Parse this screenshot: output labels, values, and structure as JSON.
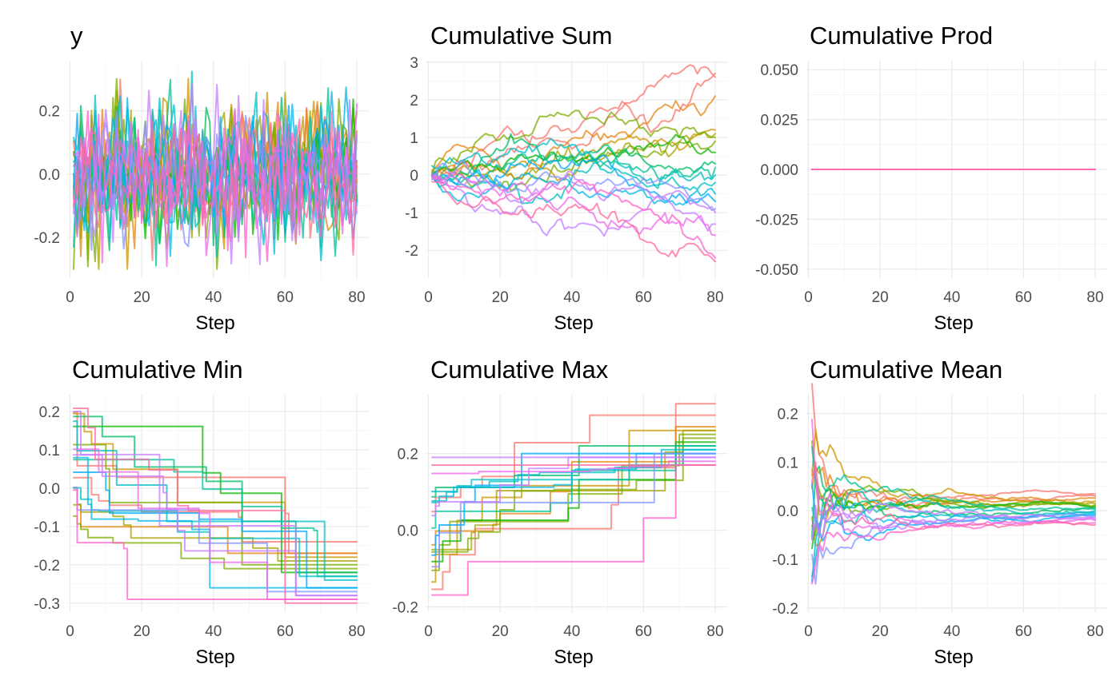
{
  "figure": {
    "palette": [
      "#F8766D",
      "#E68613",
      "#CD9600",
      "#ABA300",
      "#7CAE00",
      "#0CB702",
      "#00BE67",
      "#00C19A",
      "#00BFC4",
      "#00B8E7",
      "#00A9FF",
      "#8494FF",
      "#C77CFF",
      "#ED68ED",
      "#FF61CC",
      "#FF68A1"
    ]
  },
  "chart_data": [
    {
      "key": "y",
      "type": "line",
      "title": "y",
      "xlabel": "Step",
      "ylabel": "",
      "xlim": [
        1,
        80
      ],
      "ylim": [
        -0.3,
        0.33
      ],
      "xticks": [
        0,
        20,
        40,
        60,
        80
      ],
      "yticks": [
        -0.2,
        0.0,
        0.2
      ],
      "ytick_labels": [
        "-0.2",
        "0.0",
        "0.2"
      ],
      "n_series": 20,
      "n_steps": 80,
      "value_range": [
        -0.3,
        0.33
      ]
    },
    {
      "key": "cumsum",
      "type": "line",
      "title": "Cumulative Sum",
      "xlabel": "Step",
      "ylabel": "",
      "xlim": [
        1,
        80
      ],
      "ylim": [
        -2.5,
        2.8
      ],
      "xticks": [
        0,
        20,
        40,
        60,
        80
      ],
      "yticks": [
        -2,
        -1,
        0,
        1,
        2,
        3
      ],
      "ytick_labels": [
        "-2",
        "-1",
        "0",
        "1",
        "2",
        "3"
      ],
      "n_series": 20,
      "final_values": [
        2.7,
        2.6,
        2.1,
        1.2,
        1.1,
        1.0,
        0.9,
        0.6,
        0.3,
        0.2,
        0.0,
        -0.2,
        -0.5,
        -0.7,
        -0.9,
        -1.0,
        -1.3,
        -1.6,
        -2.2,
        -2.3
      ]
    },
    {
      "key": "cumprod",
      "type": "line",
      "title": "Cumulative Prod",
      "xlabel": "Step",
      "ylabel": "",
      "xlim": [
        1,
        80
      ],
      "ylim": [
        -0.05,
        0.05
      ],
      "xticks": [
        0,
        20,
        40,
        60,
        80
      ],
      "yticks": [
        -0.05,
        -0.025,
        0.0,
        0.025,
        0.05
      ],
      "ytick_labels": [
        "-0.050",
        "-0.025",
        "0.000",
        "0.025",
        "0.050"
      ],
      "n_series": 20,
      "constant_value": 0.0
    },
    {
      "key": "cummin",
      "type": "line",
      "title": "Cumulative Min",
      "xlabel": "Step",
      "ylabel": "",
      "xlim": [
        1,
        80
      ],
      "ylim": [
        -0.3,
        0.22
      ],
      "xticks": [
        0,
        20,
        40,
        60,
        80
      ],
      "yticks": [
        -0.3,
        -0.2,
        -0.1,
        0.0,
        0.1,
        0.2
      ],
      "ytick_labels": [
        "-0.3",
        "-0.2",
        "-0.1",
        "0.0",
        "0.1",
        "0.2"
      ],
      "n_series": 20,
      "final_values": [
        -0.14,
        -0.17,
        -0.17,
        -0.18,
        -0.19,
        -0.2,
        -0.21,
        -0.22,
        -0.22,
        -0.23,
        -0.23,
        -0.24,
        -0.26,
        -0.26,
        -0.27,
        -0.28,
        -0.28,
        -0.29,
        -0.29,
        -0.3
      ]
    },
    {
      "key": "cummax",
      "type": "line",
      "title": "Cumulative Max",
      "xlabel": "Step",
      "ylabel": "",
      "xlim": [
        1,
        80
      ],
      "ylim": [
        -0.19,
        0.33
      ],
      "xticks": [
        0,
        20,
        40,
        60,
        80
      ],
      "yticks": [
        -0.2,
        0.0,
        0.2
      ],
      "ytick_labels": [
        "-0.2",
        "0.0",
        "0.2"
      ],
      "n_series": 20,
      "final_values": [
        0.33,
        0.3,
        0.27,
        0.26,
        0.26,
        0.25,
        0.24,
        0.23,
        0.22,
        0.22,
        0.21,
        0.21,
        0.2,
        0.2,
        0.2,
        0.19,
        0.19,
        0.18,
        0.17,
        0.17
      ]
    },
    {
      "key": "cummean",
      "type": "line",
      "title": "Cumulative Mean",
      "xlabel": "Step",
      "ylabel": "",
      "xlim": [
        1,
        80
      ],
      "ylim": [
        -0.19,
        0.22
      ],
      "xticks": [
        0,
        20,
        40,
        60,
        80
      ],
      "yticks": [
        -0.2,
        -0.1,
        0.0,
        0.1,
        0.2
      ],
      "ytick_labels": [
        "-0.2",
        "-0.1",
        "0.0",
        "0.1",
        "0.2"
      ],
      "n_series": 20,
      "final_values": [
        0.034,
        0.03,
        0.026,
        0.02,
        0.015,
        0.012,
        0.01,
        0.008,
        0.005,
        0.003,
        0.0,
        -0.003,
        -0.006,
        -0.009,
        -0.012,
        -0.015,
        -0.018,
        -0.02,
        -0.025,
        -0.029
      ]
    }
  ]
}
